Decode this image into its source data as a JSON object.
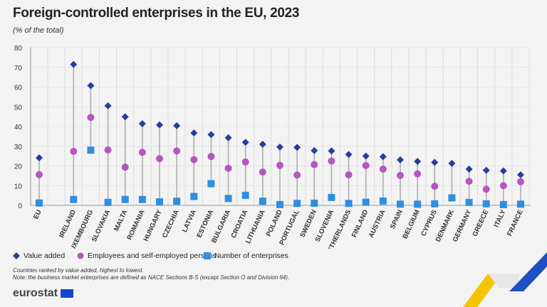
{
  "chart_data": {
    "type": "scatter",
    "title": "Foreign-controlled enterprises in the EU, 2023",
    "subtitle": "(% of the total)",
    "ylim": [
      0,
      80
    ],
    "yticks": [
      0,
      10,
      20,
      30,
      40,
      50,
      60,
      70,
      80
    ],
    "grid": true,
    "legend_position": "bottom-left",
    "categories": [
      "EU",
      "IRELAND",
      "LUXEMBOURG",
      "SLOVAKIA",
      "MALTA",
      "ROMANIA",
      "HUNGARY",
      "CZECHIA",
      "LATVIA",
      "ESTONIA",
      "BULGARIA",
      "CROATIA",
      "LITHUANIA",
      "POLAND",
      "PORTUGAL",
      "SWEDEN",
      "SLOVENIA",
      "NETHERLANDS",
      "FINLAND",
      "AUSTRIA",
      "SPAIN",
      "BELGIUM",
      "CYPRUS",
      "DENMARK",
      "GERMANY",
      "GREECE",
      "ITALY",
      "FRANCE"
    ],
    "series": [
      {
        "name": "Value added",
        "marker": "diamond",
        "color": "#23409a",
        "values": [
          24.1,
          71.5,
          60.7,
          50.5,
          44.9,
          41.4,
          40.8,
          40.4,
          36.7,
          35.9,
          34.3,
          32.0,
          31.0,
          29.6,
          29.4,
          27.8,
          27.6,
          25.8,
          25.0,
          24.7,
          23.1,
          22.3,
          21.8,
          21.3,
          18.4,
          17.8,
          17.5,
          15.5
        ]
      },
      {
        "name": "Employees and self-employed persons",
        "marker": "circle",
        "color": "#b656c0",
        "values": [
          15.6,
          27.4,
          44.6,
          28.1,
          19.4,
          26.9,
          23.7,
          27.6,
          23.2,
          24.8,
          18.8,
          22.0,
          16.9,
          20.3,
          15.4,
          20.7,
          22.5,
          15.5,
          20.2,
          18.4,
          15.2,
          16.0,
          9.7,
          null,
          12.2,
          8.2,
          10.0,
          12.0
        ]
      },
      {
        "name": "Number of enterprises",
        "marker": "square",
        "color": "#2f8fdf",
        "values": [
          1.2,
          3.0,
          28.0,
          1.5,
          3.0,
          3.0,
          1.8,
          2.1,
          4.5,
          11.0,
          3.5,
          5.1,
          2.1,
          0.4,
          1.0,
          1.1,
          4.0,
          1.0,
          1.6,
          2.2,
          0.6,
          0.6,
          0.8,
          3.8,
          1.5,
          0.8,
          0.4,
          0.6
        ]
      }
    ]
  },
  "notes": [
    "Countries ranked by value added, highest to lowest.",
    "Note: the business market enterprises are defined as NACE Sections B-S (except Section O and Division 94)."
  ],
  "logo": "eurostat"
}
